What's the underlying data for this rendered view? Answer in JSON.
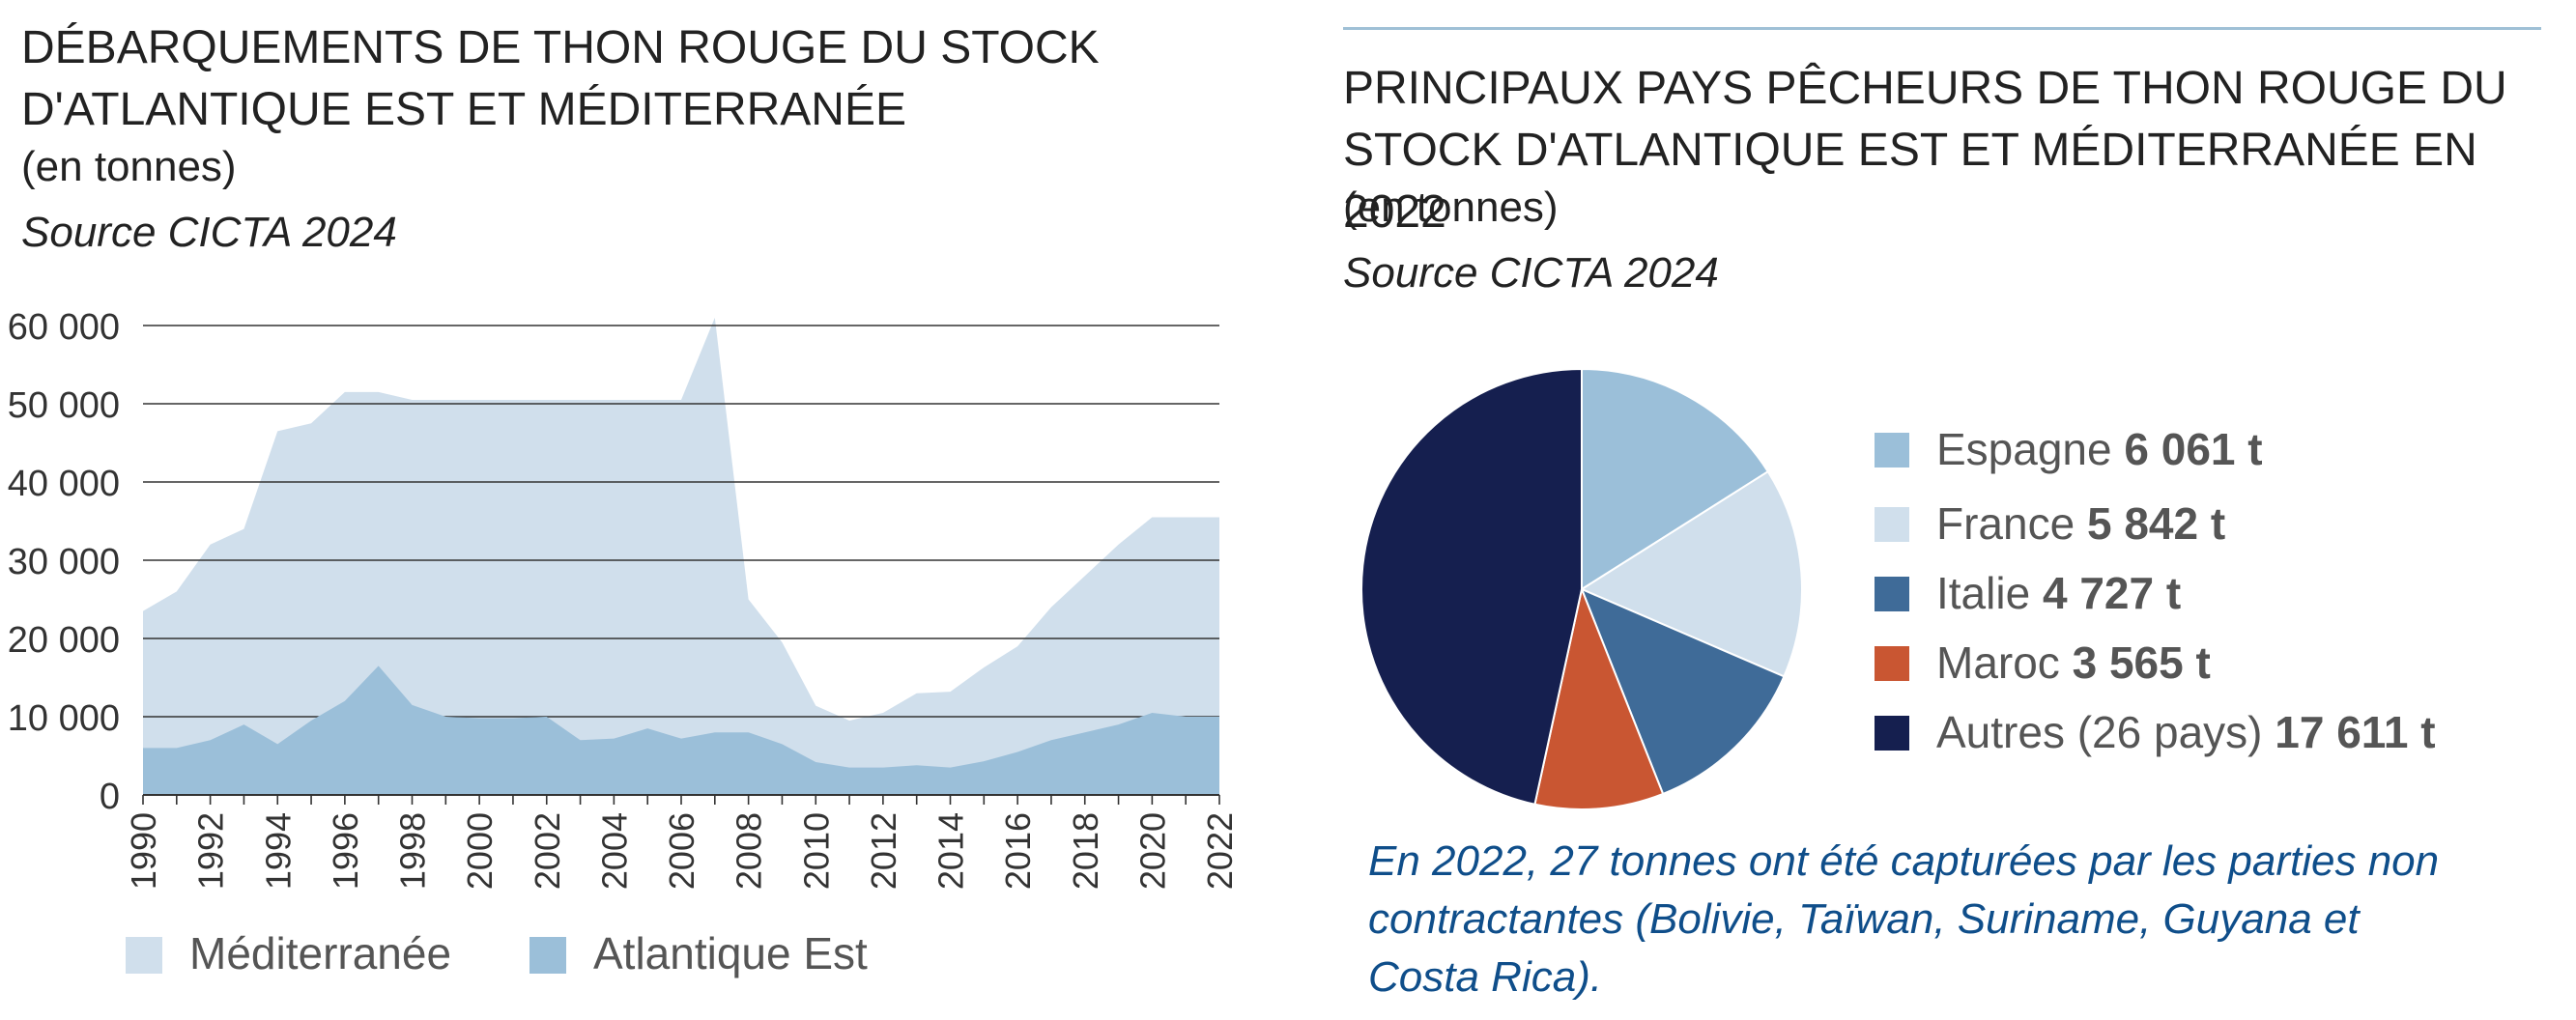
{
  "left_chart": {
    "title": "DÉBARQUEMENTS DE THON ROUGE DU STOCK D'ATLANTIQUE EST ET MÉDITERRANÉE",
    "subtitle": "(en tonnes)",
    "source": "Source CICTA 2024",
    "legend": [
      "Méditerranée",
      "Atlantique Est"
    ]
  },
  "right_chart": {
    "title": "PRINCIPAUX PAYS PÊCHEURS DE THON ROUGE DU STOCK D'ATLANTIQUE EST ET MÉDITERRANÉE EN 2022",
    "subtitle": "(en tonnes)",
    "source": "Source CICTA 2024",
    "legend": [
      {
        "name": "Espagne",
        "value": "6 061 t"
      },
      {
        "name": "France",
        "value": "5 842 t"
      },
      {
        "name": "Italie",
        "value": "4 727 t"
      },
      {
        "name": "Maroc",
        "value": "3 565 t"
      },
      {
        "name": "Autres (26 pays)",
        "value": "17 611 t"
      }
    ],
    "note": "En 2022, 27 tonnes ont été capturées par les parties non contractantes (Bolivie, Taïwan, Suriname, Guyana et Costa Rica)."
  },
  "colors": {
    "mediterranee": "#d0dfec",
    "atlantique": "#9bbfd9",
    "espagne": "#9bbfd9",
    "france": "#d0dfec",
    "italie": "#3f6b98",
    "maroc": "#c95632",
    "autres": "#151f4f",
    "note": "#0f4e8a"
  },
  "chart_data": [
    {
      "type": "area",
      "stacked": true,
      "x": [
        1990,
        1991,
        1992,
        1993,
        1994,
        1995,
        1996,
        1997,
        1998,
        1999,
        2000,
        2001,
        2002,
        2003,
        2004,
        2005,
        2006,
        2007,
        2008,
        2009,
        2010,
        2011,
        2012,
        2013,
        2014,
        2015,
        2016,
        2017,
        2018,
        2019,
        2020,
        2021,
        2022
      ],
      "x_tick_labels": [
        "1990",
        "1992",
        "1994",
        "1996",
        "1998",
        "2000",
        "2002",
        "2004",
        "2006",
        "2008",
        "2010",
        "2012",
        "2014",
        "2016",
        "2018",
        "2020",
        "2022"
      ],
      "y_tick_labels": [
        "0",
        "10 000",
        "20 000",
        "30 000",
        "40 000",
        "50 000",
        "60 000"
      ],
      "ylim": [
        0,
        60000
      ],
      "grid": true,
      "legend_position": "bottom",
      "series": [
        {
          "name": "Atlantique Est",
          "values": [
            6000,
            6000,
            7000,
            9000,
            6500,
            9500,
            12000,
            16500,
            11500,
            10000,
            9800,
            9800,
            10000,
            7000,
            7200,
            8500,
            7200,
            8000,
            8000,
            6500,
            4200,
            3500,
            3500,
            3800,
            3500,
            4300,
            5500,
            7000,
            8000,
            9000,
            10500,
            10000,
            10000
          ]
        },
        {
          "name": "Méditerranée",
          "values": [
            17500,
            20000,
            25000,
            25000,
            40000,
            38000,
            39500,
            35000,
            39000,
            40500,
            40700,
            40700,
            40500,
            43500,
            43300,
            42000,
            43300,
            53000,
            17000,
            13000,
            7200,
            6000,
            7000,
            9200,
            9700,
            12000,
            13500,
            17000,
            20000,
            23000,
            25000,
            25500,
            25500
          ]
        }
      ]
    },
    {
      "type": "pie",
      "title": "PRINCIPAUX PAYS PÊCHEURS DE THON ROUGE DU STOCK D'ATLANTIQUE EST ET MÉDITERRANÉE EN 2022",
      "categories": [
        "Espagne",
        "France",
        "Italie",
        "Maroc",
        "Autres (26 pays)"
      ],
      "values": [
        6061,
        5842,
        4727,
        3565,
        17611
      ],
      "unit": "t"
    }
  ]
}
